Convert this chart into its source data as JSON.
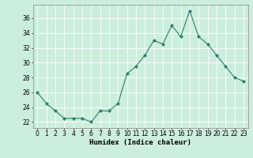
{
  "x": [
    0,
    1,
    2,
    3,
    4,
    5,
    6,
    7,
    8,
    9,
    10,
    11,
    12,
    13,
    14,
    15,
    16,
    17,
    18,
    19,
    20,
    21,
    22,
    23
  ],
  "y": [
    26,
    24.5,
    23.5,
    22.5,
    22.5,
    22.5,
    22,
    23.5,
    23.5,
    24.5,
    28.5,
    29.5,
    31,
    33,
    32.5,
    35,
    33.5,
    37,
    33.5,
    32.5,
    31,
    29.5,
    28,
    27.5
  ],
  "line_color": "#2e7d6e",
  "marker": "D",
  "marker_size": 2.0,
  "bg_color": "#cceedd",
  "grid_color": "#ffffff",
  "xlabel": "Humidex (Indice chaleur)",
  "xlim": [
    -0.5,
    23.5
  ],
  "ylim": [
    21.2,
    37.8
  ],
  "yticks": [
    22,
    24,
    26,
    28,
    30,
    32,
    34,
    36
  ],
  "xticks": [
    0,
    1,
    2,
    3,
    4,
    5,
    6,
    7,
    8,
    9,
    10,
    11,
    12,
    13,
    14,
    15,
    16,
    17,
    18,
    19,
    20,
    21,
    22,
    23
  ],
  "tick_fontsize": 5.5,
  "xlabel_fontsize": 6.5
}
